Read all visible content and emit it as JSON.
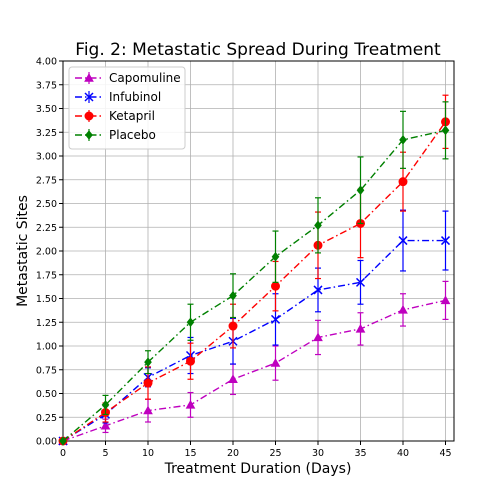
{
  "chart_data": {
    "type": "line",
    "title": "Fig. 2: Metastatic Spread During Treatment",
    "xlabel": "Treatment Duration (Days)",
    "ylabel": "Metastatic Sites",
    "xlim": [
      0,
      46
    ],
    "ylim": [
      0,
      4.0
    ],
    "xticks": [
      "0",
      "5",
      "10",
      "15",
      "20",
      "25",
      "30",
      "35",
      "40",
      "45"
    ],
    "yticks": [
      "0.00",
      "0.25",
      "0.50",
      "0.75",
      "1.00",
      "1.25",
      "1.50",
      "1.75",
      "2.00",
      "2.25",
      "2.50",
      "2.75",
      "3.00",
      "3.25",
      "3.50",
      "3.75",
      "4.00"
    ],
    "grid": true,
    "legend_position": "upper-left",
    "x": [
      0,
      5,
      10,
      15,
      20,
      25,
      30,
      35,
      40,
      45
    ],
    "series": [
      {
        "name": "Capomuline",
        "color": "#bf00bf",
        "marker": "triangle",
        "linestyle": "dash-dot",
        "values": [
          0.0,
          0.16,
          0.32,
          0.38,
          0.65,
          0.82,
          1.09,
          1.18,
          1.38,
          1.48
        ],
        "errors": [
          0.0,
          0.07,
          0.12,
          0.13,
          0.16,
          0.18,
          0.18,
          0.17,
          0.17,
          0.2
        ]
      },
      {
        "name": "Infubinol",
        "color": "#0000ff",
        "marker": "x",
        "linestyle": "dash-dot",
        "values": [
          0.0,
          0.28,
          0.67,
          0.9,
          1.05,
          1.28,
          1.59,
          1.67,
          2.11,
          2.11
        ],
        "errors": [
          0.0,
          0.09,
          0.1,
          0.19,
          0.24,
          0.27,
          0.23,
          0.23,
          0.32,
          0.31
        ]
      },
      {
        "name": "Ketapril",
        "color": "#ff0000",
        "marker": "circle",
        "linestyle": "dash-dot",
        "values": [
          0.0,
          0.3,
          0.61,
          0.84,
          1.21,
          1.63,
          2.06,
          2.29,
          2.73,
          3.36
        ],
        "errors": [
          0.0,
          0.1,
          0.17,
          0.19,
          0.23,
          0.26,
          0.35,
          0.36,
          0.31,
          0.28
        ]
      },
      {
        "name": "Placebo",
        "color": "#008000",
        "marker": "diamond",
        "linestyle": "dash-dot",
        "values": [
          0.0,
          0.38,
          0.83,
          1.25,
          1.53,
          1.94,
          2.27,
          2.64,
          3.17,
          3.27
        ],
        "errors": [
          0.0,
          0.1,
          0.12,
          0.19,
          0.23,
          0.27,
          0.29,
          0.35,
          0.3,
          0.3
        ]
      }
    ]
  }
}
